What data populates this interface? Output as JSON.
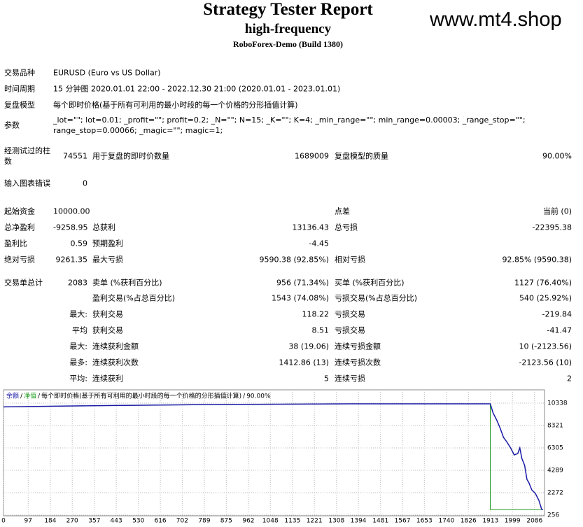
{
  "header": {
    "title": "Strategy Tester Report",
    "subtitle": "high-frequency",
    "build": "RoboForex-Demo (Build 1380)",
    "watermark": "www.mt4.shop"
  },
  "table": {
    "rows": [
      [
        "交易品种",
        "EURUSD (Euro vs US Dollar)"
      ],
      [
        "时间周期",
        "15 分钟图 2020.01.01 22:00 - 2022.12.30 21:00 (2020.01.01 - 2023.01.01)"
      ],
      [
        "复盘模型",
        "每个即时价格(基于所有可利用的最小时段的每一个价格的分形插值计算)"
      ],
      [
        "参数",
        "_lot=\"\"; lot=0.01; _profit=\"\"; profit=0.2; _N=\"\"; N=15; _K=\"\"; K=4; _min_range=\"\"; min_range=0.00003; _range_stop=\"\"; range_stop=0.00066; _magic=\"\"; magic=1;"
      ],
      [
        "经测试过的柱数",
        "74551",
        "用于复盘的即时价数量",
        "1689009",
        "复盘模型的质量",
        "90.00%"
      ],
      [
        "输入图表错误",
        "0"
      ],
      [
        "起始资金",
        "10000.00",
        "点差",
        "当前 (0)"
      ],
      [
        "总净盈利",
        "-9258.95",
        "总获利",
        "13136.43",
        "总亏损",
        "-22395.38"
      ],
      [
        "盈利比",
        "0.59",
        "预期盈利",
        "-4.45"
      ],
      [
        "绝对亏损",
        "9261.35",
        "最大亏损",
        "9590.38 (92.85%)",
        "相对亏损",
        "92.85% (9590.38)"
      ],
      [
        "交易单总计",
        "2083",
        "卖单 (%获利百分比)",
        "956 (71.34%)",
        "买单 (%获利百分比)",
        "1127 (76.40%)"
      ],
      [
        "盈利交易(%占总百分比)",
        "1543 (74.08%)",
        "亏损交易(%占总百分比)",
        "540 (25.92%)"
      ],
      [
        "最大:",
        "获利交易",
        "118.22",
        "亏损交易",
        "-219.84"
      ],
      [
        "平均",
        "获利交易",
        "8.51",
        "亏损交易",
        "-41.47"
      ],
      [
        "最大:",
        "连续获利金额",
        "38 (19.06)",
        "连续亏损金额",
        "10 (-2123.56)"
      ],
      [
        "最多:",
        "连续获利次数",
        "1412.86 (13)",
        "连续亏损次数",
        "-2123.56 (10)"
      ],
      [
        "平均:",
        "连续获利",
        "5",
        "连续亏损",
        "2"
      ]
    ]
  },
  "chart_data": {
    "type": "line",
    "legend_note": "每个即时价格(基于所有可利用的最小时段的每一个价格的分形插值计算)",
    "quality": "90.00%",
    "xlim": [
      0,
      2125
    ],
    "ylim": [
      193,
      11535
    ],
    "xticks": [
      0,
      97,
      184,
      270,
      357,
      443,
      530,
      616,
      702,
      789,
      875,
      962,
      1048,
      1135,
      1221,
      1308,
      1394,
      1481,
      1567,
      1653,
      1740,
      1826,
      1913,
      1999,
      2086
    ],
    "yticks": [
      10338,
      8321,
      6305,
      4289,
      2272,
      256
    ],
    "grid": true,
    "series": [
      {
        "name": "余额",
        "color": "#1a1aa6",
        "x": [
          0,
          254,
          806,
          1358,
          1882,
          1912,
          1923,
          1937,
          1951,
          1964,
          1978,
          1992,
          2006,
          2020,
          2028,
          2036,
          2047,
          2056,
          2064,
          2075,
          2089,
          2103,
          2114,
          2119
        ],
        "values": [
          10000,
          10080,
          10210,
          10275,
          10275,
          10275,
          9456,
          8826,
          8070,
          7250,
          6810,
          6305,
          5675,
          5800,
          6305,
          5360,
          4730,
          3470,
          3155,
          2525,
          2210,
          1580,
          760,
          741
        ]
      },
      {
        "name": "净值",
        "color": "#1e9e1e",
        "x": [
          0,
          254,
          806,
          1358,
          1882,
          1912,
          1912,
          2114,
          2119
        ],
        "values": [
          10000,
          10080,
          10210,
          10275,
          10275,
          10275,
          760,
          760,
          741
        ]
      }
    ]
  }
}
